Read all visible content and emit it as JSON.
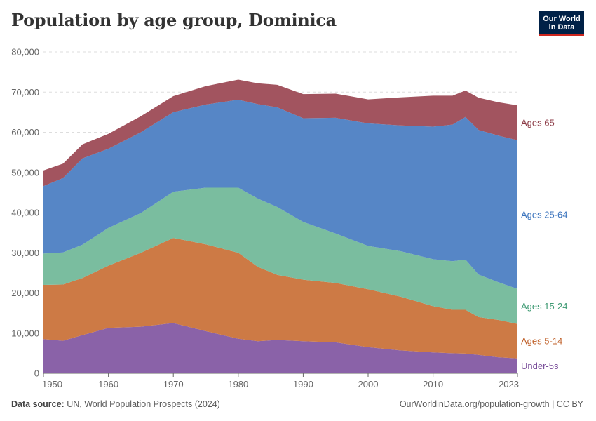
{
  "title": "Population by age group, Dominica",
  "logo": {
    "line1": "Our World",
    "line2": "in Data"
  },
  "footer": {
    "source_label": "Data source:",
    "source_text": "UN, World Population Prospects (2024)",
    "link_text": "OurWorldinData.org/population-growth | CC BY"
  },
  "chart_data": {
    "type": "area",
    "stacked": true,
    "title": "Population by age group, Dominica",
    "xlabel": "",
    "ylabel": "",
    "xlim": [
      1950,
      2023
    ],
    "ylim": [
      0,
      80000
    ],
    "grid": true,
    "y_ticks": [
      0,
      10000,
      20000,
      30000,
      40000,
      50000,
      60000,
      70000,
      80000
    ],
    "y_tick_labels": [
      "0",
      "10,000",
      "20,000",
      "30,000",
      "40,000",
      "50,000",
      "60,000",
      "70,000",
      "80,000"
    ],
    "x_ticks": [
      1950,
      1960,
      1970,
      1980,
      1990,
      2000,
      2010,
      2023
    ],
    "x_tick_labels": [
      "1950",
      "1960",
      "1970",
      "1980",
      "1990",
      "2000",
      "2010",
      "2023"
    ],
    "x": [
      1950,
      1953,
      1956,
      1960,
      1965,
      1970,
      1975,
      1980,
      1983,
      1986,
      1990,
      1995,
      2000,
      2005,
      2010,
      2013,
      2015,
      2017,
      2020,
      2023
    ],
    "series": [
      {
        "name": "Under-5s",
        "color": "#8a62a8",
        "values": [
          8500,
          8100,
          9500,
          11300,
          11600,
          12500,
          10500,
          8600,
          8000,
          8300,
          8000,
          7700,
          6500,
          5700,
          5200,
          5000,
          4900,
          4600,
          4000,
          3700
        ]
      },
      {
        "name": "Ages 5-14",
        "color": "#cd7a45",
        "values": [
          13500,
          14000,
          14200,
          15500,
          18400,
          21200,
          21600,
          21400,
          18500,
          16200,
          15300,
          14800,
          14400,
          13400,
          11500,
          10800,
          10900,
          9400,
          9300,
          8600
        ]
      },
      {
        "name": "Ages 15-24",
        "color": "#7abd9f",
        "values": [
          7800,
          8000,
          8300,
          9400,
          9900,
          11500,
          14100,
          16200,
          17000,
          16900,
          14400,
          12300,
          10800,
          11300,
          11700,
          12100,
          12500,
          10600,
          9400,
          8700
        ]
      },
      {
        "name": "Ages 25-64",
        "color": "#5686c6",
        "values": [
          16800,
          18500,
          21500,
          19700,
          20100,
          19800,
          20700,
          21900,
          23500,
          24800,
          25800,
          28800,
          30500,
          31300,
          33000,
          34000,
          35500,
          36000,
          36500,
          37000
        ]
      },
      {
        "name": "Ages 65+",
        "color": "#a2545f",
        "values": [
          3900,
          3600,
          3500,
          3700,
          4000,
          4000,
          4600,
          5000,
          5200,
          5600,
          6000,
          6000,
          6000,
          7000,
          7700,
          7200,
          6600,
          8000,
          8300,
          8700
        ]
      }
    ]
  }
}
